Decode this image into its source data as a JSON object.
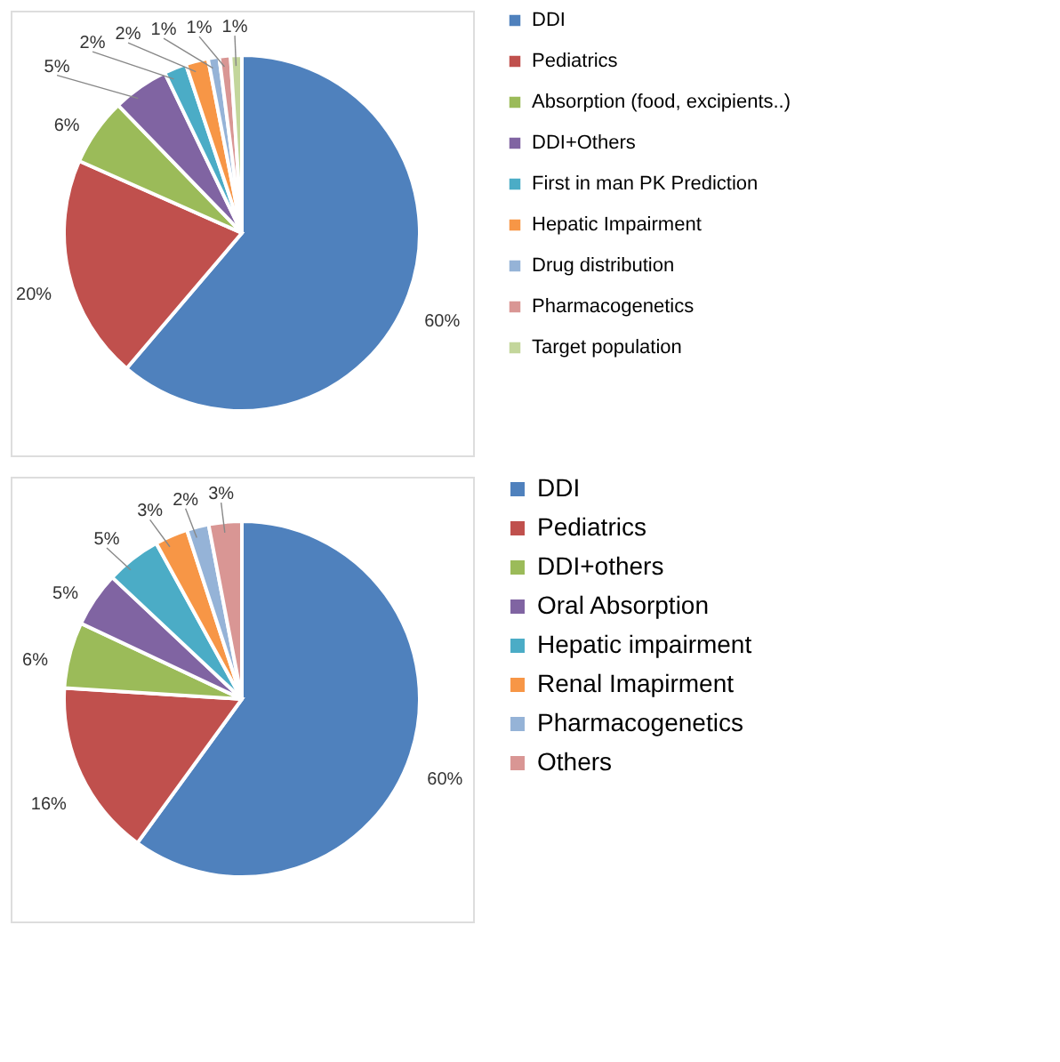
{
  "chart_data": [
    {
      "type": "pie",
      "legend": "right",
      "categories": [
        "DDI",
        "Pediatrics",
        "Absorption (food, excipients..)",
        "DDI+Others",
        "First in man PK Prediction",
        "Hepatic Impairment",
        "Drug distribution",
        "Pharmacogenetics",
        "Target population"
      ],
      "values": [
        60,
        20,
        6,
        5,
        2,
        2,
        1,
        1,
        1
      ],
      "value_labels": [
        "60%",
        "20%",
        "6%",
        "5%",
        "2%",
        "2%",
        "1%",
        "1%",
        "1%"
      ],
      "colors": [
        "#4f81bd",
        "#c0504d",
        "#9bbb59",
        "#8064a2",
        "#4bacc6",
        "#f79646",
        "#95b3d7",
        "#d99694",
        "#c3d69b"
      ]
    },
    {
      "type": "pie",
      "legend": "right",
      "categories": [
        "DDI",
        "Pediatrics",
        "DDI+others",
        "Oral Absorption",
        "Hepatic impairment",
        "Renal Imapirment",
        "Pharmacogenetics",
        "Others"
      ],
      "values": [
        60,
        16,
        6,
        5,
        5,
        3,
        2,
        3
      ],
      "value_labels": [
        "60%",
        "16%",
        "6%",
        "5%",
        "5%",
        "3%",
        "2%",
        "3%"
      ],
      "colors": [
        "#4f81bd",
        "#c0504d",
        "#9bbb59",
        "#8064a2",
        "#4bacc6",
        "#f79646",
        "#95b3d7",
        "#d99694"
      ]
    }
  ]
}
